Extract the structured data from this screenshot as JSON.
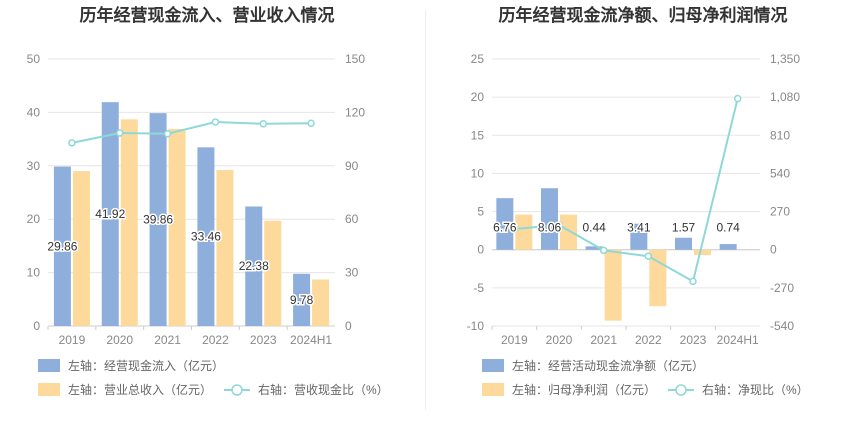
{
  "colors": {
    "bar_blue": "#8eafdc",
    "bar_orange": "#fdd99b",
    "line_cyan": "#8fd8d8",
    "grid": "#e6e6e6",
    "axis_text": "#888888"
  },
  "chart_data": [
    {
      "type": "bar",
      "title": "历年经营现金流入、营业收入情况",
      "categories": [
        "2019",
        "2020",
        "2021",
        "2022",
        "2023",
        "2024H1"
      ],
      "left_axis": {
        "min": 0,
        "max": 50,
        "ticks": [
          "0",
          "10",
          "20",
          "30",
          "40",
          "50"
        ]
      },
      "right_axis": {
        "min": 0,
        "max": 150,
        "ticks": [
          "0",
          "30",
          "60",
          "90",
          "120",
          "150"
        ]
      },
      "grid": true,
      "legend_position": "bottom",
      "series": [
        {
          "name": "左轴：经营现金流入（亿元）",
          "type": "bar",
          "axis": "left",
          "color": "#8eafdc",
          "values": [
            29.86,
            41.92,
            39.86,
            33.46,
            22.38,
            9.78
          ],
          "labels": [
            "29.86",
            "41.92",
            "39.86",
            "33.46",
            "22.38",
            "9.78"
          ]
        },
        {
          "name": "左轴：营业总收入（亿元）",
          "type": "bar",
          "axis": "left",
          "color": "#fdd99b",
          "values": [
            29.0,
            38.7,
            36.9,
            29.2,
            19.7,
            8.7
          ]
        },
        {
          "name": "右轴：营收现金比（%）",
          "type": "line",
          "axis": "right",
          "color": "#8fd8d8",
          "values": [
            102.9,
            108.4,
            108.0,
            114.6,
            113.6,
            113.9
          ]
        }
      ]
    },
    {
      "type": "bar",
      "title": "历年经营现金流净额、归母净利润情况",
      "categories": [
        "2019",
        "2020",
        "2021",
        "2022",
        "2023",
        "2024H1"
      ],
      "left_axis": {
        "min": -10,
        "max": 25,
        "ticks": [
          "-10",
          "-5",
          "0",
          "5",
          "10",
          "15",
          "20",
          "25"
        ]
      },
      "right_axis": {
        "min": -540,
        "max": 1350,
        "ticks": [
          "-540",
          "-270",
          "0",
          "270",
          "540",
          "810",
          "1,080",
          "1,350"
        ]
      },
      "grid": true,
      "legend_position": "bottom",
      "series": [
        {
          "name": "左轴：经营活动现金流净额（亿元）",
          "type": "bar",
          "axis": "left",
          "color": "#8eafdc",
          "values": [
            6.76,
            8.06,
            0.44,
            3.41,
            1.57,
            0.74
          ],
          "labels": [
            "6.76",
            "8.06",
            "0.44",
            "3.41",
            "1.57",
            "0.74"
          ]
        },
        {
          "name": "左轴：归母净利润（亿元）",
          "type": "bar",
          "axis": "left",
          "color": "#fdd99b",
          "values": [
            4.6,
            4.6,
            -9.3,
            -7.4,
            -0.7,
            0.0
          ]
        },
        {
          "name": "右轴：净现比（%）",
          "type": "line",
          "axis": "right",
          "color": "#8fd8d8",
          "values": [
            147,
            175,
            -5,
            -46,
            -224,
            1070
          ]
        }
      ]
    }
  ]
}
